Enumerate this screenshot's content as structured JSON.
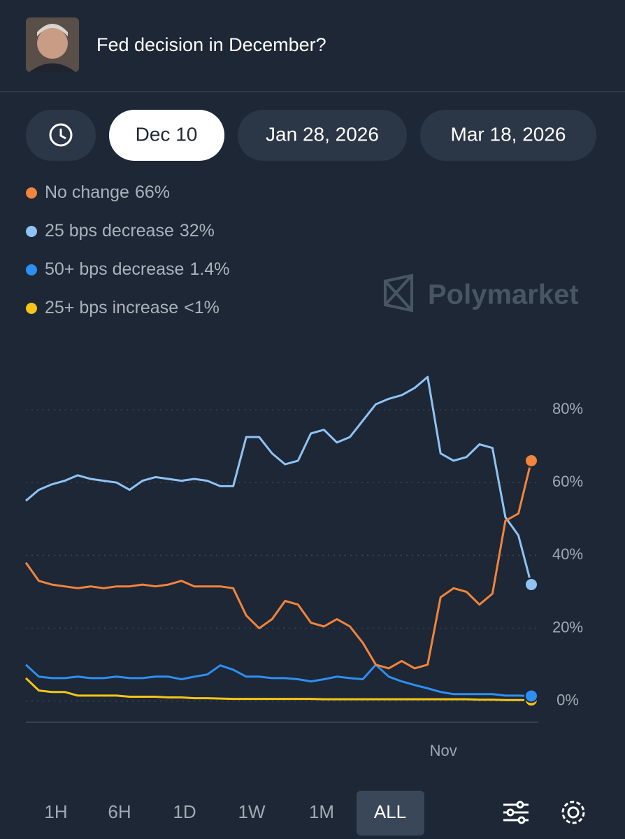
{
  "header": {
    "title": "Fed decision in December?"
  },
  "tabs": [
    "Dec 10",
    "Jan 28, 2026",
    "Mar 18, 2026"
  ],
  "watermark": "Polymarket",
  "ranges": [
    "1H",
    "6H",
    "1D",
    "1W",
    "1M",
    "ALL"
  ],
  "chart_data": {
    "type": "line",
    "categories": [
      null,
      null,
      null,
      null,
      null,
      null,
      null,
      null,
      null,
      null,
      null,
      null,
      null,
      null,
      null,
      null,
      null,
      null,
      null,
      null,
      null,
      null,
      null,
      null,
      null,
      null,
      null,
      null,
      null,
      null,
      null,
      null,
      "Nov",
      null,
      null,
      null,
      null,
      null,
      null,
      null
    ],
    "series": [
      {
        "name": "No change",
        "legend_label": "66%",
        "color": "#f2843c",
        "values": [
          38,
          33,
          32,
          31.5,
          31,
          31.5,
          31,
          31.5,
          31.5,
          32,
          31.5,
          32,
          33,
          31.5,
          31.5,
          31.5,
          31,
          23.5,
          20,
          22.5,
          27.5,
          26.5,
          21.5,
          20.5,
          22.5,
          20.5,
          16,
          10,
          9,
          11,
          9,
          10,
          28.5,
          31,
          30,
          26.5,
          29.5,
          49.5,
          51.5,
          66
        ]
      },
      {
        "name": "25 bps decrease",
        "legend_label": "32%",
        "color": "#8fc3f5",
        "values": [
          55,
          58,
          59.5,
          60.5,
          62,
          61,
          60.5,
          60,
          58,
          60.5,
          61.5,
          61,
          60.5,
          61,
          60.5,
          59,
          59,
          72.5,
          72.5,
          68,
          65,
          66,
          73.5,
          74.5,
          71,
          72.5,
          77,
          81.5,
          83,
          84,
          86,
          89,
          68,
          66,
          67,
          70.5,
          69.5,
          50.5,
          45.5,
          32
        ]
      },
      {
        "name": "50+ bps decrease",
        "legend_label": "1.4%",
        "color": "#2e8ff2",
        "values": [
          10,
          6.7,
          6.3,
          6.3,
          6.7,
          6.3,
          6.3,
          6.7,
          6.3,
          6.3,
          6.7,
          6.7,
          6,
          6.7,
          7.3,
          9.8,
          8.6,
          6.7,
          6.7,
          6.3,
          6.3,
          6,
          5.4,
          6,
          6.7,
          6.3,
          6,
          10,
          6.7,
          5.4,
          4.4,
          3.5,
          2.5,
          1.9,
          1.9,
          1.9,
          1.9,
          1.5,
          1.5,
          1.4
        ]
      },
      {
        "name": "25+ bps increase",
        "legend_label": "<1%",
        "color": "#f5c518",
        "values": [
          6.3,
          2.9,
          2.5,
          2.5,
          1.5,
          1.5,
          1.5,
          1.5,
          1.2,
          1.2,
          1.2,
          1,
          1,
          0.8,
          0.8,
          0.7,
          0.6,
          0.6,
          0.6,
          0.6,
          0.6,
          0.6,
          0.6,
          0.5,
          0.5,
          0.5,
          0.5,
          0.5,
          0.5,
          0.5,
          0.5,
          0.5,
          0.5,
          0.5,
          0.5,
          0.4,
          0.4,
          0.3,
          0.3,
          0.3
        ]
      }
    ],
    "ylim": [
      -6,
      92
    ],
    "yticks": [
      {
        "value": 0,
        "label": "0%"
      },
      {
        "value": 20,
        "label": "20%"
      },
      {
        "value": 40,
        "label": "40%"
      },
      {
        "value": 60,
        "label": "60%"
      },
      {
        "value": 80,
        "label": "80%"
      }
    ],
    "grid": true
  }
}
